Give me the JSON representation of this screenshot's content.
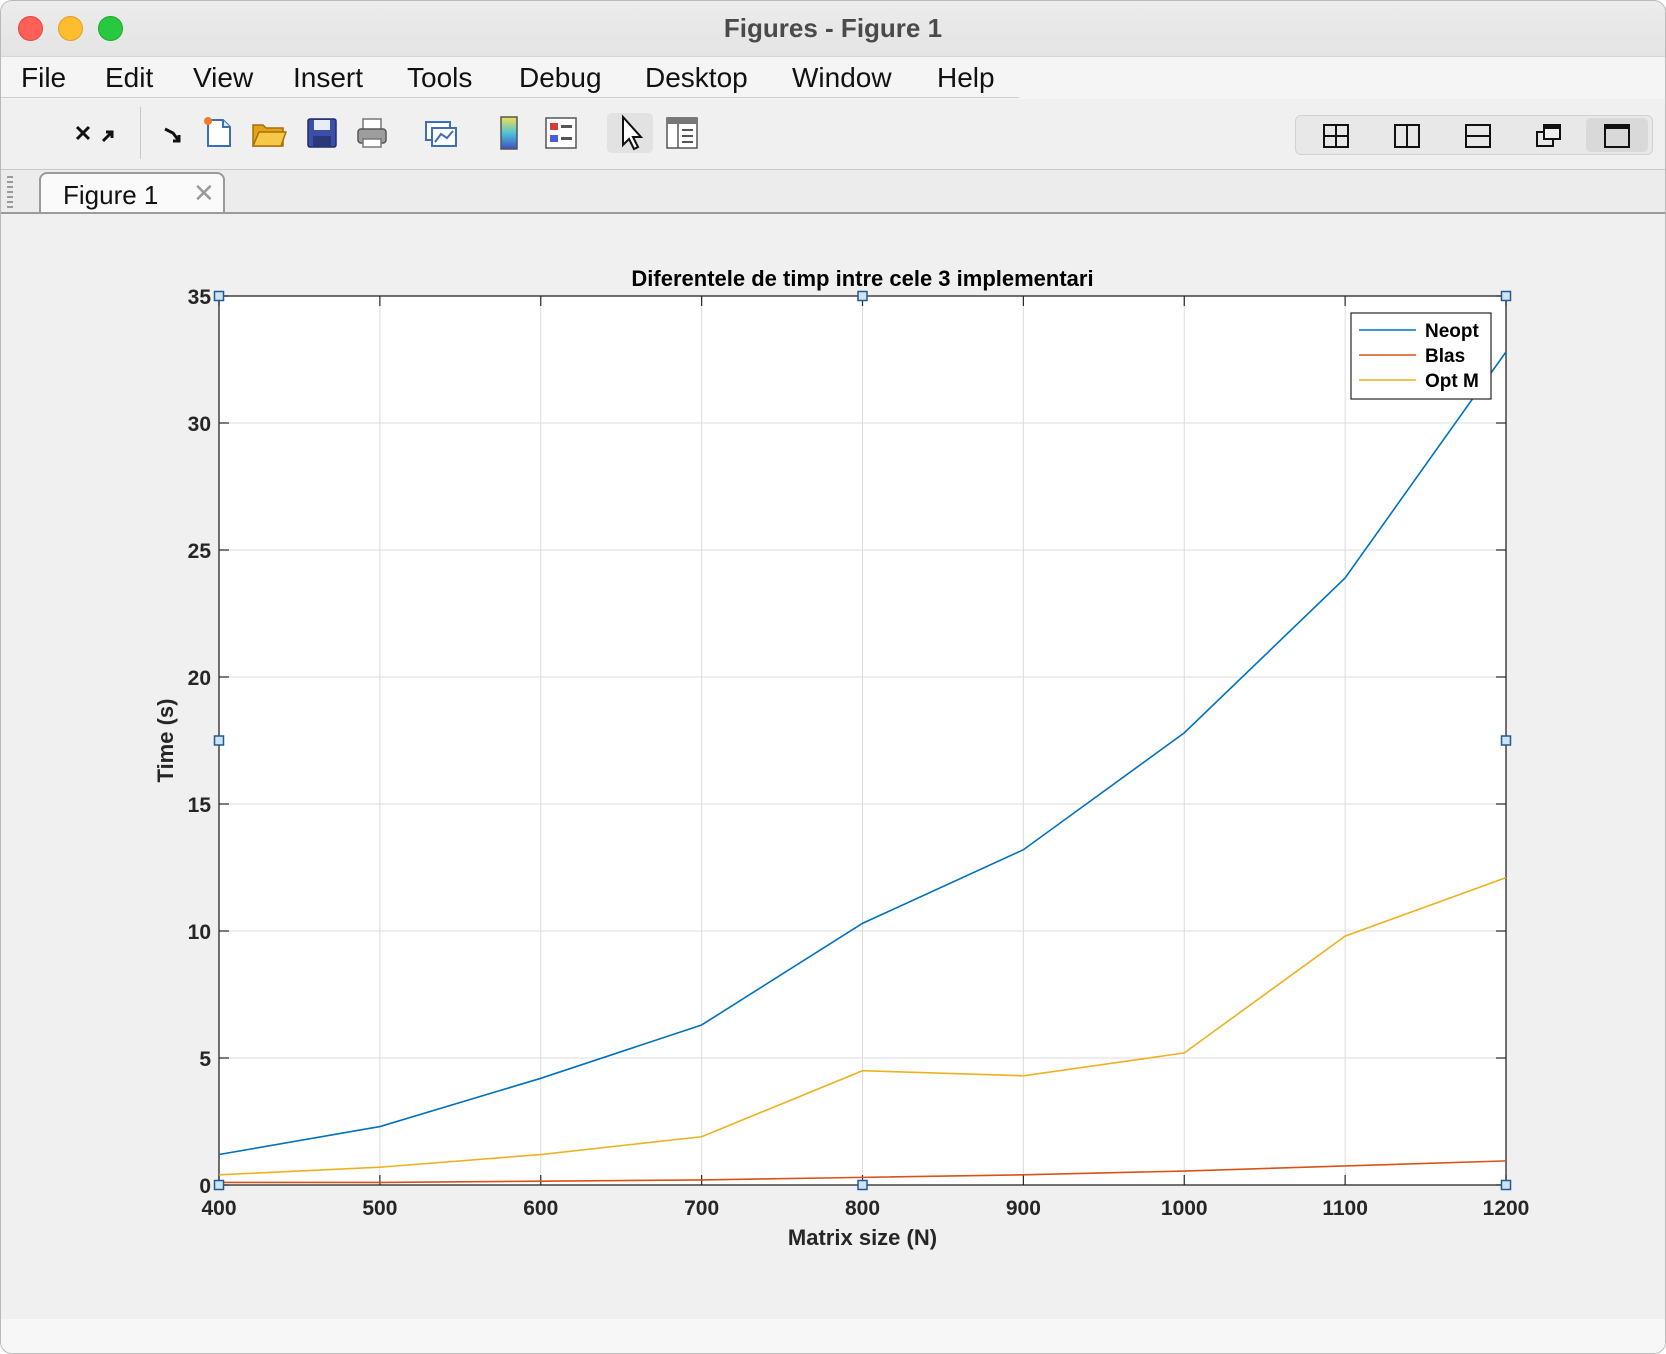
{
  "window": {
    "title": "Figures - Figure 1"
  },
  "menubar": {
    "items": [
      "File",
      "Edit",
      "View",
      "Insert",
      "Tools",
      "Debug",
      "Desktop",
      "Window",
      "Help"
    ]
  },
  "toolbar": {
    "icons": [
      "undock-icon",
      "arrow-icon",
      "new-figure-icon",
      "open-file-icon",
      "save-icon",
      "print-icon",
      "link-plot-icon",
      "colorbar-icon",
      "legend-icon",
      "edit-plot-icon",
      "property-inspector-icon"
    ],
    "layout_icons": [
      "tile-layout-icon",
      "left-right-layout-icon",
      "top-bottom-layout-icon",
      "float-layout-icon",
      "maximize-layout-icon"
    ]
  },
  "tabs": [
    {
      "label": "Figure 1",
      "close": "✕"
    }
  ],
  "colors": {
    "neopt": "#0072bd",
    "blas": "#d95319",
    "optm": "#edb120"
  },
  "chart_data": {
    "type": "line",
    "title": "Diferentele de timp intre cele 3 implementari",
    "xlabel": "Matrix size (N)",
    "ylabel": "Time (s)",
    "x": [
      400,
      500,
      600,
      700,
      800,
      900,
      1000,
      1100,
      1200
    ],
    "xlim": [
      400,
      1200
    ],
    "ylim": [
      0,
      35
    ],
    "xticks": [
      "400",
      "500",
      "600",
      "700",
      "800",
      "900",
      "1000",
      "1100",
      "1200"
    ],
    "yticks": [
      "0",
      "5",
      "10",
      "15",
      "20",
      "25",
      "30",
      "35"
    ],
    "grid": true,
    "legend_position": "top-right",
    "series": [
      {
        "name": "Neopt",
        "values": [
          1.2,
          2.3,
          4.2,
          6.3,
          10.3,
          13.2,
          17.8,
          23.9,
          32.8
        ]
      },
      {
        "name": "Blas",
        "values": [
          0.1,
          0.1,
          0.15,
          0.2,
          0.3,
          0.4,
          0.55,
          0.75,
          0.95
        ]
      },
      {
        "name": "Opt M",
        "values": [
          0.4,
          0.7,
          1.2,
          1.9,
          4.5,
          4.3,
          5.2,
          9.8,
          12.1
        ]
      }
    ]
  }
}
